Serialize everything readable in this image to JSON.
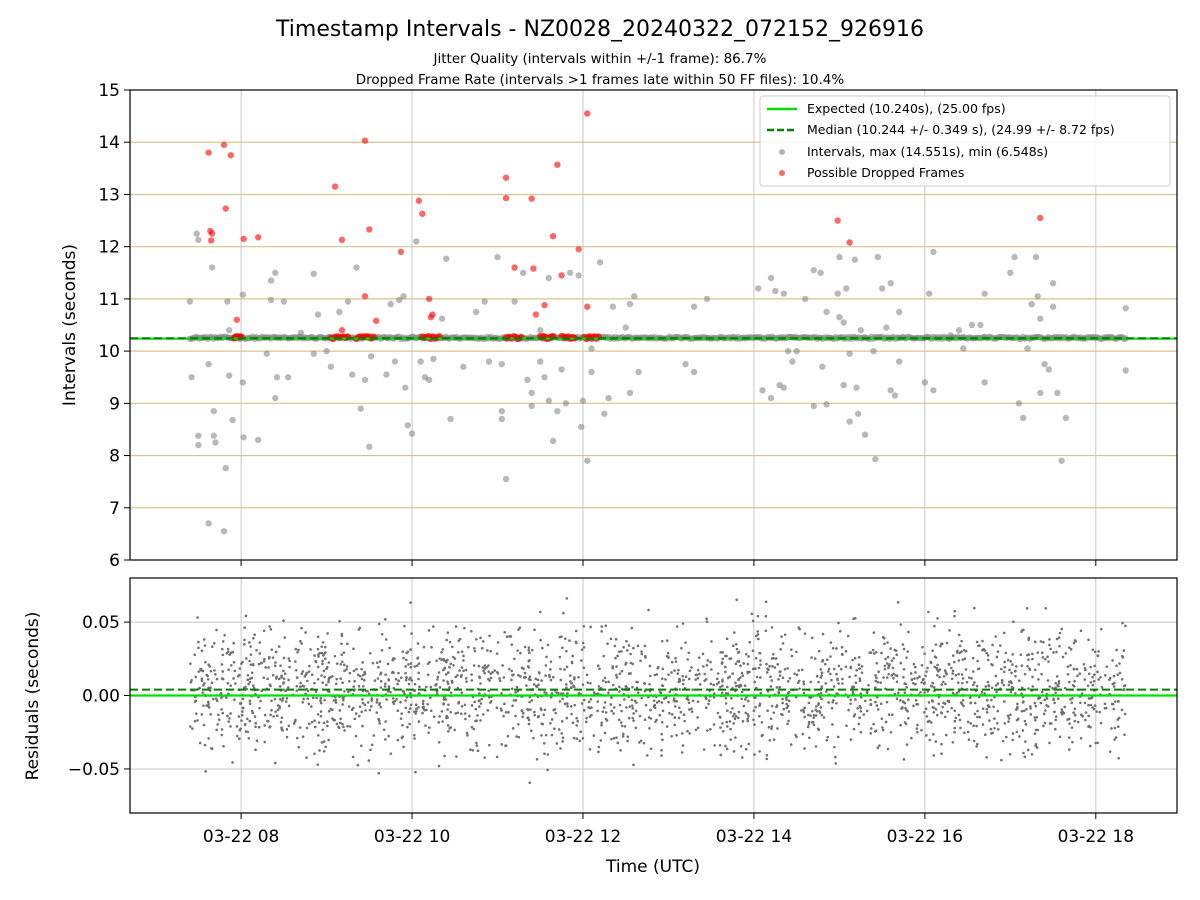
{
  "title": "Timestamp Intervals - NZ0028_20240322_072152_926916",
  "subtitle_1": "Jitter Quality (intervals within +/-1 frame): 86.7%",
  "subtitle_2": "Dropped Frame Rate (intervals >1 frames late within 50 FF files): 10.4%",
  "chart_data": [
    {
      "type": "scatter",
      "panel": "top",
      "ylabel": "Intervals (seconds)",
      "ylim": [
        6,
        15
      ],
      "yticks": [
        "6",
        "7",
        "8",
        "9",
        "10",
        "11",
        "12",
        "13",
        "14",
        "15"
      ],
      "x_range_hours": [
        6.7,
        18.95
      ],
      "grid": "on",
      "legend_placement": "top-right",
      "legend": [
        {
          "label": "Expected (10.240s), (25.00 fps)",
          "color": "#00e000",
          "style": "solid-line"
        },
        {
          "label": "Median (10.244 +/- 0.349 s), (24.99 +/- 8.72 fps)",
          "color": "#008000",
          "style": "dashed-line"
        },
        {
          "label": "Intervals, max (14.551s), min (6.548s)",
          "color": "#808080",
          "style": "marker"
        },
        {
          "label": "Possible Dropped Frames",
          "color": "#ff0000",
          "style": "marker"
        }
      ],
      "expected_value": 10.24,
      "median_value": 10.244,
      "series": [
        {
          "name": "Possible Dropped Frames",
          "color": "#ff0000",
          "points": [
            [
              7.62,
              13.8
            ],
            [
              7.64,
              12.3
            ],
            [
              7.66,
              12.25
            ],
            [
              7.65,
              12.12
            ],
            [
              7.8,
              13.95
            ],
            [
              7.82,
              12.73
            ],
            [
              7.88,
              13.75
            ],
            [
              7.95,
              10.6
            ],
            [
              8.03,
              12.15
            ],
            [
              8.2,
              12.18
            ],
            [
              9.1,
              13.15
            ],
            [
              9.18,
              12.13
            ],
            [
              9.18,
              10.4
            ],
            [
              9.45,
              14.03
            ],
            [
              9.45,
              11.05
            ],
            [
              9.5,
              12.33
            ],
            [
              9.58,
              10.58
            ],
            [
              9.87,
              11.9
            ],
            [
              10.08,
              12.88
            ],
            [
              10.12,
              12.63
            ],
            [
              10.2,
              11.0
            ],
            [
              10.22,
              10.65
            ],
            [
              10.24,
              10.7
            ],
            [
              11.1,
              13.32
            ],
            [
              11.1,
              12.93
            ],
            [
              11.2,
              11.6
            ],
            [
              11.4,
              12.92
            ],
            [
              11.42,
              11.58
            ],
            [
              11.45,
              10.7
            ],
            [
              11.55,
              10.88
            ],
            [
              11.65,
              12.2
            ],
            [
              11.7,
              13.57
            ],
            [
              11.75,
              11.45
            ],
            [
              11.95,
              11.95
            ],
            [
              12.05,
              14.55
            ],
            [
              12.05,
              10.85
            ],
            [
              14.98,
              12.5
            ],
            [
              15.12,
              12.08
            ],
            [
              17.35,
              12.55
            ]
          ]
        },
        {
          "name": "Intervals, max (14.551s), min (6.548s)",
          "color": "#808080",
          "points": [
            [
              7.4,
              10.95
            ],
            [
              7.42,
              9.5
            ],
            [
              7.48,
              12.25
            ],
            [
              7.5,
              12.13
            ],
            [
              7.5,
              8.38
            ],
            [
              7.5,
              8.2
            ],
            [
              7.62,
              9.75
            ],
            [
              7.62,
              6.7
            ],
            [
              7.66,
              11.6
            ],
            [
              7.68,
              8.85
            ],
            [
              7.68,
              8.38
            ],
            [
              7.7,
              8.25
            ],
            [
              7.8,
              6.55
            ],
            [
              7.82,
              7.76
            ],
            [
              7.84,
              10.95
            ],
            [
              7.86,
              9.53
            ],
            [
              7.86,
              10.4
            ],
            [
              7.9,
              8.68
            ],
            [
              8.02,
              11.08
            ],
            [
              8.02,
              9.4
            ],
            [
              8.03,
              8.35
            ],
            [
              8.2,
              8.3
            ],
            [
              8.3,
              9.95
            ],
            [
              8.35,
              11.35
            ],
            [
              8.35,
              10.98
            ],
            [
              8.4,
              11.5
            ],
            [
              8.4,
              9.1
            ],
            [
              8.42,
              9.5
            ],
            [
              8.5,
              10.95
            ],
            [
              8.55,
              9.5
            ],
            [
              8.7,
              10.35
            ],
            [
              8.85,
              11.48
            ],
            [
              8.85,
              9.95
            ],
            [
              8.9,
              10.7
            ],
            [
              9.0,
              10.0
            ],
            [
              9.05,
              9.7
            ],
            [
              9.15,
              10.75
            ],
            [
              9.25,
              10.95
            ],
            [
              9.3,
              9.55
            ],
            [
              9.35,
              11.6
            ],
            [
              9.4,
              8.9
            ],
            [
              9.45,
              9.45
            ],
            [
              9.5,
              8.17
            ],
            [
              9.52,
              9.9
            ],
            [
              9.7,
              9.55
            ],
            [
              9.75,
              10.9
            ],
            [
              9.8,
              9.8
            ],
            [
              9.85,
              10.98
            ],
            [
              9.9,
              11.05
            ],
            [
              9.92,
              9.3
            ],
            [
              9.95,
              8.58
            ],
            [
              10.0,
              8.42
            ],
            [
              10.05,
              12.1
            ],
            [
              10.1,
              9.8
            ],
            [
              10.15,
              9.5
            ],
            [
              10.2,
              9.45
            ],
            [
              10.25,
              9.85
            ],
            [
              10.35,
              10.62
            ],
            [
              10.4,
              11.77
            ],
            [
              10.45,
              8.7
            ],
            [
              10.6,
              9.7
            ],
            [
              10.75,
              10.75
            ],
            [
              10.85,
              10.95
            ],
            [
              10.9,
              9.8
            ],
            [
              11.0,
              11.8
            ],
            [
              11.05,
              9.75
            ],
            [
              11.05,
              8.85
            ],
            [
              11.05,
              8.7
            ],
            [
              11.1,
              7.55
            ],
            [
              11.2,
              10.95
            ],
            [
              11.3,
              11.5
            ],
            [
              11.35,
              9.45
            ],
            [
              11.4,
              9.2
            ],
            [
              11.4,
              8.95
            ],
            [
              11.5,
              9.8
            ],
            [
              11.5,
              10.4
            ],
            [
              11.55,
              9.5
            ],
            [
              11.6,
              9.05
            ],
            [
              11.6,
              11.4
            ],
            [
              11.65,
              8.28
            ],
            [
              11.7,
              8.85
            ],
            [
              11.75,
              9.65
            ],
            [
              11.8,
              9.0
            ],
            [
              11.85,
              11.5
            ],
            [
              11.95,
              11.45
            ],
            [
              11.98,
              8.55
            ],
            [
              12.0,
              9.05
            ],
            [
              12.05,
              7.9
            ],
            [
              12.1,
              9.6
            ],
            [
              12.1,
              10.05
            ],
            [
              12.2,
              11.7
            ],
            [
              12.25,
              8.8
            ],
            [
              12.3,
              9.1
            ],
            [
              12.35,
              10.85
            ],
            [
              12.5,
              10.45
            ],
            [
              12.55,
              9.2
            ],
            [
              12.55,
              10.9
            ],
            [
              12.6,
              11.05
            ],
            [
              12.65,
              9.6
            ],
            [
              13.2,
              9.75
            ],
            [
              13.3,
              10.85
            ],
            [
              13.3,
              9.6
            ],
            [
              13.45,
              11.0
            ],
            [
              14.05,
              11.2
            ],
            [
              14.1,
              9.25
            ],
            [
              14.2,
              11.4
            ],
            [
              14.2,
              9.1
            ],
            [
              14.25,
              11.15
            ],
            [
              14.3,
              9.35
            ],
            [
              14.35,
              9.3
            ],
            [
              14.35,
              11.1
            ],
            [
              14.4,
              10.0
            ],
            [
              14.45,
              9.8
            ],
            [
              14.5,
              10.0
            ],
            [
              14.6,
              11.0
            ],
            [
              14.7,
              11.55
            ],
            [
              14.7,
              8.95
            ],
            [
              14.78,
              11.5
            ],
            [
              14.8,
              9.7
            ],
            [
              14.85,
              10.75
            ],
            [
              14.85,
              8.98
            ],
            [
              14.98,
              11.1
            ],
            [
              15.0,
              11.8
            ],
            [
              15.0,
              10.65
            ],
            [
              15.05,
              9.35
            ],
            [
              15.05,
              10.55
            ],
            [
              15.08,
              11.2
            ],
            [
              15.12,
              9.95
            ],
            [
              15.12,
              8.65
            ],
            [
              15.18,
              11.75
            ],
            [
              15.2,
              9.3
            ],
            [
              15.22,
              8.8
            ],
            [
              15.25,
              10.4
            ],
            [
              15.3,
              8.4
            ],
            [
              15.4,
              10.0
            ],
            [
              15.42,
              7.93
            ],
            [
              15.45,
              11.8
            ],
            [
              15.5,
              11.2
            ],
            [
              15.55,
              10.45
            ],
            [
              15.6,
              9.25
            ],
            [
              15.6,
              11.3
            ],
            [
              15.65,
              9.15
            ],
            [
              15.7,
              9.8
            ],
            [
              15.7,
              10.75
            ],
            [
              16.0,
              9.4
            ],
            [
              16.05,
              11.1
            ],
            [
              16.1,
              11.9
            ],
            [
              16.1,
              9.25
            ],
            [
              16.3,
              10.3
            ],
            [
              16.4,
              10.4
            ],
            [
              16.45,
              10.05
            ],
            [
              16.55,
              10.5
            ],
            [
              16.65,
              10.5
            ],
            [
              16.7,
              11.1
            ],
            [
              16.7,
              9.4
            ],
            [
              17.0,
              11.5
            ],
            [
              17.05,
              11.8
            ],
            [
              17.1,
              9.0
            ],
            [
              17.15,
              8.72
            ],
            [
              17.2,
              10.05
            ],
            [
              17.25,
              10.9
            ],
            [
              17.3,
              11.8
            ],
            [
              17.32,
              11.05
            ],
            [
              17.35,
              9.2
            ],
            [
              17.35,
              10.62
            ],
            [
              17.4,
              9.75
            ],
            [
              17.45,
              9.65
            ],
            [
              17.5,
              10.85
            ],
            [
              17.5,
              11.3
            ],
            [
              17.55,
              9.2
            ],
            [
              17.6,
              7.9
            ],
            [
              17.65,
              8.72
            ],
            [
              18.35,
              10.82
            ],
            [
              18.35,
              9.63
            ]
          ]
        }
      ]
    },
    {
      "type": "scatter",
      "panel": "bottom",
      "ylabel": "Residuals (seconds)",
      "xlabel": "Time (UTC)",
      "ylim": [
        -0.08,
        0.08
      ],
      "yticks": [
        "−0.05",
        "0.00",
        "0.05"
      ],
      "ytick_values": [
        -0.05,
        0.0,
        0.05
      ],
      "xticks": [
        "03-22 08",
        "03-22 10",
        "03-22 12",
        "03-22 14",
        "03-22 16",
        "03-22 18"
      ],
      "xtick_hours": [
        8,
        10,
        12,
        14,
        16,
        18
      ],
      "x_range_hours": [
        6.7,
        18.95
      ],
      "grid": "on",
      "expected_value": 0.0,
      "median_value": 0.004,
      "color": "#707070"
    }
  ],
  "colors": {
    "expected": "#00e000",
    "median": "#008000",
    "gridline_top": "#d6c58a",
    "gridline_bottom": "#c8c8c8",
    "points_grey": "#808080",
    "points_red": "#ff0000"
  }
}
